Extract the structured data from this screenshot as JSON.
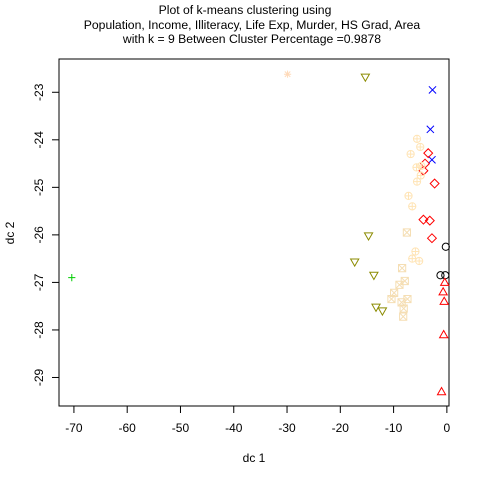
{
  "chart_data": {
    "type": "scatter",
    "title": [
      "Plot of k-means clustering using",
      "Population, Income, Illiteracy, Life Exp, Murder, HS Grad, Area",
      "with  k = 9 Between Cluster Percentage =0.9878"
    ],
    "xlabel": "dc 1",
    "ylabel": "dc 2",
    "xlim": [
      -72.8,
      0.4
    ],
    "ylim": [
      -29.6,
      -22.3
    ],
    "xticks": [
      -70,
      -60,
      -50,
      -40,
      -30,
      -20,
      -10,
      0
    ],
    "yticks": [
      -23,
      -24,
      -25,
      -26,
      -27,
      -28,
      -29
    ],
    "grid": false,
    "series": [
      {
        "symbol": "circle",
        "color": "#000000",
        "points": [
          [
            -0.2,
            -26.25
          ],
          [
            -1.2,
            -26.85
          ],
          [
            -0.3,
            -26.85
          ]
        ]
      },
      {
        "symbol": "triangle",
        "color": "#ff0000",
        "points": [
          [
            -0.4,
            -27.0
          ],
          [
            -0.7,
            -27.2
          ],
          [
            -0.5,
            -27.4
          ],
          [
            -0.6,
            -28.1
          ],
          [
            -1.0,
            -29.3
          ]
        ]
      },
      {
        "symbol": "plus",
        "color": "#00cd00",
        "points": [
          [
            -70.4,
            -26.9
          ]
        ]
      },
      {
        "symbol": "x",
        "color": "#0000ff",
        "points": [
          [
            -2.7,
            -22.95
          ],
          [
            -3.1,
            -23.78
          ],
          [
            -2.8,
            -24.42
          ]
        ]
      },
      {
        "symbol": "diamond",
        "color": "#ff0000",
        "points": [
          [
            -3.5,
            -24.28
          ],
          [
            -4.1,
            -24.5
          ],
          [
            -4.4,
            -24.65
          ],
          [
            -2.3,
            -24.92
          ],
          [
            -4.4,
            -25.68
          ],
          [
            -3.2,
            -25.7
          ],
          [
            -2.8,
            -26.07
          ]
        ]
      },
      {
        "symbol": "triangle-down",
        "color": "#8b8b00",
        "points": [
          [
            -15.3,
            -22.68
          ],
          [
            -14.7,
            -26.02
          ],
          [
            -17.3,
            -26.57
          ],
          [
            -13.7,
            -26.85
          ],
          [
            -13.3,
            -27.52
          ],
          [
            -12.1,
            -27.6
          ]
        ]
      },
      {
        "symbol": "asterisk",
        "color": "#ffdab9",
        "points": [
          [
            -29.9,
            -22.62
          ]
        ]
      },
      {
        "symbol": "circle-plus",
        "color": "#ffe4b5",
        "points": [
          [
            -5.6,
            -23.98
          ],
          [
            -5.0,
            -24.15
          ],
          [
            -6.8,
            -24.3
          ],
          [
            -5.7,
            -24.58
          ],
          [
            -4.8,
            -24.55
          ],
          [
            -4.9,
            -24.75
          ],
          [
            -5.6,
            -24.88
          ],
          [
            -7.2,
            -25.18
          ],
          [
            -6.5,
            -25.4
          ],
          [
            -5.9,
            -26.35
          ],
          [
            -6.5,
            -26.5
          ],
          [
            -5.2,
            -26.55
          ]
        ]
      },
      {
        "symbol": "square-x",
        "color": "#f5deb3",
        "points": [
          [
            -7.5,
            -25.95
          ],
          [
            -8.4,
            -26.7
          ],
          [
            -7.9,
            -26.97
          ],
          [
            -8.9,
            -27.05
          ],
          [
            -7.4,
            -27.35
          ],
          [
            -8.5,
            -27.42
          ],
          [
            -9.9,
            -27.22
          ],
          [
            -10.4,
            -27.35
          ],
          [
            -8.1,
            -27.55
          ],
          [
            -8.2,
            -27.72
          ]
        ]
      }
    ]
  }
}
